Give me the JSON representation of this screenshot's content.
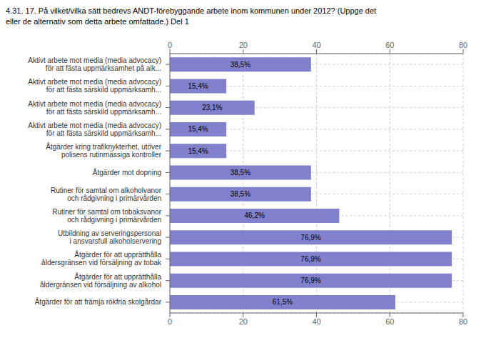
{
  "chart_data": {
    "type": "bar",
    "orientation": "horizontal",
    "title": "4.31. 17. På vilket/vilka sätt bedrevs ANDT-förebyggande arbete inom kommunen under 2012? (Uppge det\neller de alternativ som detta arbete omfattade.) Del 1",
    "categories": [
      "Aktivt arbete mot media (media advocacy)\nför att fästa uppmärksamhet på alk...",
      "Aktivt arbete mot media (media advocacy)\nför att fästa särskild uppmärksamh...",
      "Aktivt arbete mot media (media advocacy)\nför att fästa särskild uppmärksamh...",
      "Aktivt arbete mot media (media advocacy)\nför att fästa särskild uppmärksamh...",
      "Åtgärder kring trafiknykterhet, utöver\npolisens rutinmässiga kontroller",
      "Åtgärder mot dopning",
      "Rutiner för samtal om alkoholvanor\noch rådgivning i primärvården",
      "Rutiner för samtal om tobaksvanor\noch rådgivning i primärvården",
      "Utbildning av serveringspersonal\ni ansvarsfull alkoholservering",
      "Åtgärder för att upprätthålla\nåldersgränsen vid försäljning av tobak",
      "Åtgärder för att upprätthålla\nåldergränsen vid försäljning av alkohol",
      "Åtgärder för att främja rökfria skolgårdar"
    ],
    "values": [
      38.5,
      15.4,
      23.1,
      15.4,
      15.4,
      38.5,
      38.5,
      46.2,
      76.9,
      76.9,
      76.9,
      61.5
    ],
    "value_labels": [
      "38,5%",
      "15,4%",
      "23,1%",
      "15,4%",
      "15,4%",
      "38,5%",
      "38,5%",
      "46,2%",
      "76,9%",
      "76,9%",
      "76,9%",
      "61,5%"
    ],
    "color": "#8080cc",
    "xlim": [
      0,
      80
    ],
    "xticks": [
      0,
      20,
      40,
      60,
      80
    ],
    "grid": true,
    "data_labels": true
  }
}
